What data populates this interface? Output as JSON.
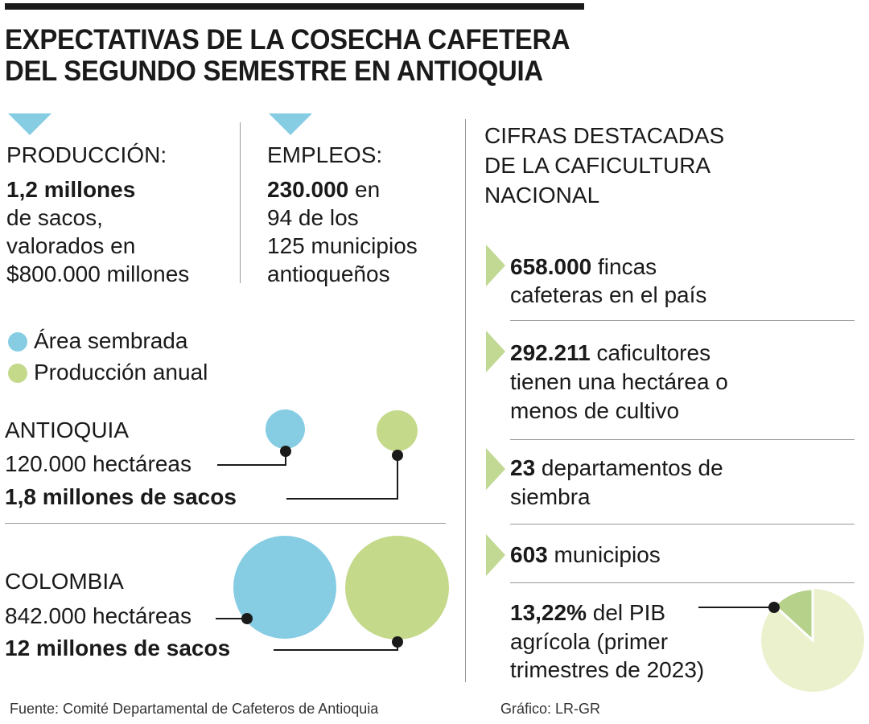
{
  "title": {
    "line1": "EXPECTATIVAS DE LA COSECHA CAFETERA",
    "line2": "DEL SEGUNDO SEMESTRE EN ANTIOQUIA"
  },
  "colors": {
    "blue": "#86cde3",
    "green": "#c4d98a",
    "pale_green": "#ebf1cd",
    "pie_slice": "#b6d18a",
    "arrow_green": "#c1d993"
  },
  "produccion": {
    "label": "PRODUCCIÓN:",
    "value": "1,2 millones",
    "line2": "de sacos,",
    "line3": "valorados en",
    "line4": "$800.000 millones"
  },
  "empleos": {
    "label": "EMPLEOS:",
    "value": "230.000",
    "value_suffix": " en",
    "line2": "94 de los",
    "line3": "125 municipios",
    "line4": "antioqueños"
  },
  "legend": {
    "area": "Área sembrada",
    "produccion": "Producción anual"
  },
  "antioquia": {
    "name": "ANTIOQUIA",
    "hectareas": "120.000 hectáreas",
    "sacos": "1,8 millones de sacos"
  },
  "colombia": {
    "name": "COLOMBIA",
    "hectareas": "842.000 hectáreas",
    "sacos": "12 millones de sacos"
  },
  "cifras": {
    "heading_l1": "CIFRAS DESTACADAS",
    "heading_l2": "DE LA CAFICULTURA",
    "heading_l3": "NACIONAL",
    "fincas": {
      "value": "658.000",
      "suffix": " fincas",
      "line2": "cafeteras en el país"
    },
    "caficultores": {
      "value": "292.211",
      "suffix": " caficultores",
      "line2": "tienen una hectárea o",
      "line3": "menos de cultivo"
    },
    "departamentos": {
      "value": "23",
      "suffix": " departamentos de",
      "line2": "siembra"
    },
    "municipios": {
      "value": "603",
      "suffix": " municipios"
    },
    "pib": {
      "value": "13,22%",
      "suffix": " del PIB",
      "line2": "agrícola (primer",
      "line3": "trimestres de 2023)",
      "share_percent": 13.22
    }
  },
  "footer": {
    "source": "Fuente: Comité Departamental de Cafeteros de Antioquia",
    "credit": "Gráfico: LR-GR"
  }
}
